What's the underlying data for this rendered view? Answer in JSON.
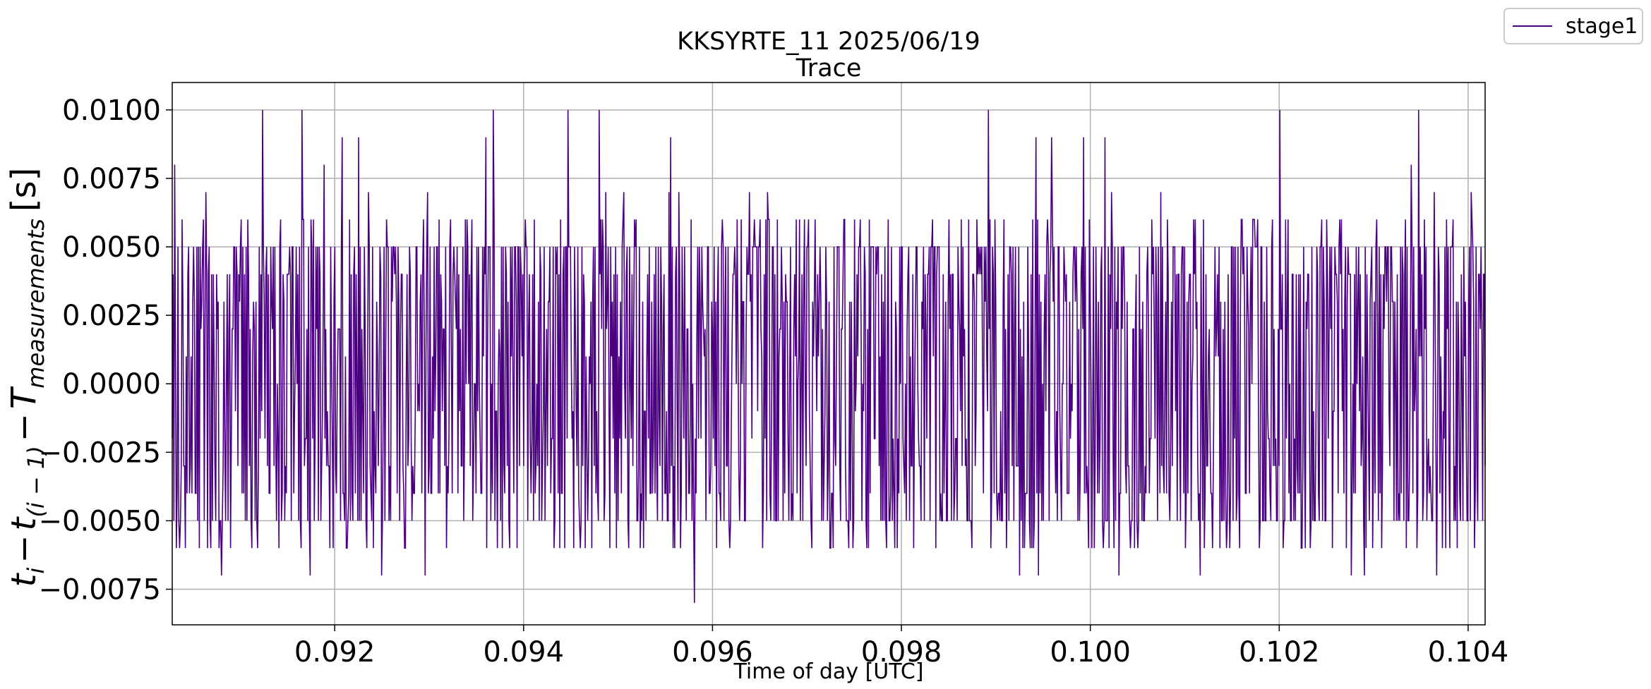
{
  "chart_data": {
    "type": "line",
    "title": "KKSYRTE_11 2025/06/19",
    "subtitle": "Trace",
    "xlabel": "Time of day [UTC]",
    "ylabel": {
      "t": "t",
      "i": "i",
      "minus1": "−",
      "t2": "t",
      "i_minus_1": "(i − 1)",
      "minus2": "−",
      "T": "T",
      "measurements": "measurements",
      "unit": "[s]"
    },
    "xlim": [
      0.09028,
      0.10418
    ],
    "ylim": [
      -0.0088,
      0.011
    ],
    "xticks": [
      0.092,
      0.094,
      0.096,
      0.098,
      0.1,
      0.102,
      0.104
    ],
    "xtick_labels": [
      "0.092",
      "0.094",
      "0.096",
      "0.098",
      "0.100",
      "0.102",
      "0.104"
    ],
    "yticks": [
      0.01,
      0.0075,
      0.005,
      0.0025,
      0.0,
      -0.0025,
      -0.005,
      -0.0075
    ],
    "ytick_labels": [
      "0.0100",
      "0.0075",
      "0.0050",
      "0.0025",
      "0.0000",
      "−0.0025",
      "−0.0050",
      "−0.0075"
    ],
    "grid": true,
    "legend_placement": "top-right-outside",
    "series": [
      {
        "name": "stage1",
        "color": "#4b0082",
        "x_range": [
          0.09028,
          0.10418
        ],
        "n_points": 1600,
        "value_levels": [
          -0.008,
          -0.007,
          -0.006,
          -0.005,
          -0.004,
          -0.003,
          -0.002,
          -0.001,
          0.0,
          0.001,
          0.002,
          0.003,
          0.004,
          0.005,
          0.006,
          0.007,
          0.008,
          0.009,
          0.01
        ],
        "level_weights": [
          0.002,
          0.01,
          0.06,
          0.14,
          0.09,
          0.07,
          0.05,
          0.04,
          0.03,
          0.04,
          0.05,
          0.07,
          0.09,
          0.16,
          0.06,
          0.012,
          0.008,
          0.006,
          0.002
        ],
        "extremes": [
          {
            "x": 0.09581,
            "y": -0.008
          },
          {
            "x": 0.09447,
            "y": 0.01
          },
          {
            "x": 0.0948,
            "y": 0.01
          },
          {
            "x": 0.09892,
            "y": 0.01
          },
          {
            "x": 0.10201,
            "y": 0.01
          },
          {
            "x": 0.09208,
            "y": 0.009
          },
          {
            "x": 0.09225,
            "y": 0.009
          },
          {
            "x": 0.0936,
            "y": 0.009
          },
          {
            "x": 0.09556,
            "y": 0.009
          },
          {
            "x": 0.0908,
            "y": -0.007
          },
          {
            "x": 0.09945,
            "y": -0.007
          },
          {
            "x": 0.1003,
            "y": -0.007
          },
          {
            "x": 0.1029,
            "y": -0.007
          }
        ]
      }
    ]
  }
}
